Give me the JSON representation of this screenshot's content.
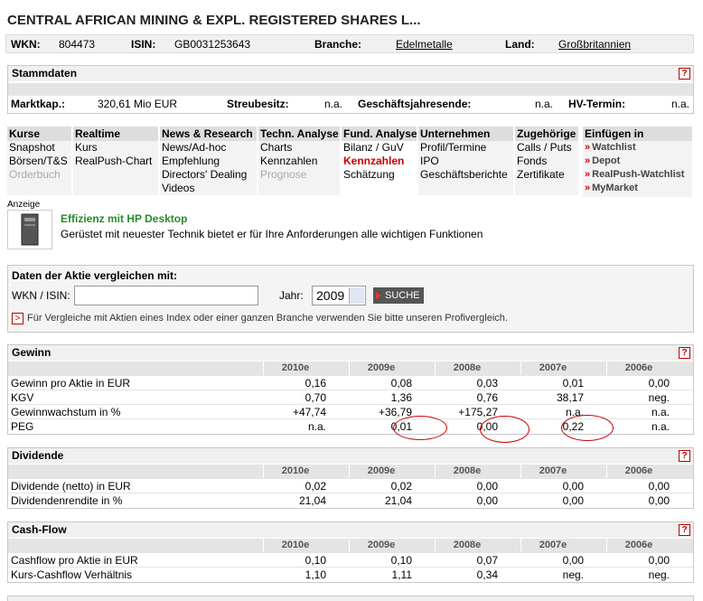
{
  "header": {
    "title": "CENTRAL AFRICAN MINING & EXPL. REGISTERED SHARES L..."
  },
  "info": [
    {
      "label": "WKN:",
      "value": "804473"
    },
    {
      "label": "ISIN:",
      "value": "GB0031253643"
    },
    {
      "label": "Branche:",
      "value": "Edelmetalle"
    },
    {
      "label": "Land:",
      "value": "Großbritannien"
    }
  ],
  "stammdaten": {
    "title": "Stammdaten",
    "help": "?",
    "items": [
      {
        "label": "Marktkap.:",
        "value": "320,61 Mio EUR"
      },
      {
        "label": "Streubesitz:",
        "value": "n.a."
      },
      {
        "label": "Geschäftsjahresende:",
        "value": "n.a."
      },
      {
        "label": "HV-Termin:",
        "value": "n.a."
      }
    ]
  },
  "nav": [
    {
      "title": "Kurse",
      "links": [
        "Snapshot",
        "Börsen/T&S",
        "Orderbuch"
      ]
    },
    {
      "title": "Realtime",
      "links": [
        "Kurs",
        "RealPush-Chart"
      ]
    },
    {
      "title": "News & Research",
      "links": [
        "News/Ad-hoc",
        "Empfehlung",
        "Directors' Dealing",
        "Videos"
      ]
    },
    {
      "title": "Techn. Analyse",
      "links": [
        "Charts",
        "Kennzahlen",
        "Prognose"
      ]
    },
    {
      "title": "Fund. Analyse",
      "links": [
        "Bilanz / GuV",
        "Kennzahlen",
        "Schätzung"
      ]
    },
    {
      "title": "Unternehmen",
      "links": [
        "Profil/Termine",
        "IPO",
        "Geschäftsberichte"
      ]
    },
    {
      "title": "Zugehörige",
      "links": [
        "Calls / Puts",
        "Fonds",
        "Zertifikate"
      ]
    }
  ],
  "einfuegen": {
    "title": "Einfügen in",
    "marker": "»",
    "links": [
      "Watchlist",
      "Depot",
      "RealPush-Watchlist",
      "MyMarket"
    ]
  },
  "ad": {
    "label": "Anzeige",
    "title": "Effizienz mit HP Desktop",
    "text": "Gerüstet mit neuester Technik bietet er für Ihre Anforderungen alle wichtigen Funktionen"
  },
  "compare": {
    "title": "Daten der Aktie vergleichen mit:",
    "wkn_label": "WKN / ISIN:",
    "year_label": "Jahr:",
    "year": "2009",
    "button": "SUCHE",
    "note_marker": ">",
    "note": "Für Vergleiche mit Aktien eines Index oder einer ganzen Branche verwenden Sie bitte unseren Profivergleich."
  },
  "tables": [
    {
      "title": "Gewinn",
      "help": "?",
      "columns": [
        "2010e",
        "2009e",
        "2008e",
        "2007e",
        "2006e"
      ],
      "rows": [
        {
          "label": "Gewinn pro Aktie in EUR",
          "values": [
            "0,16",
            "0,08",
            "0,03",
            "0,01",
            "0,00"
          ]
        },
        {
          "label": "KGV",
          "values": [
            "0,70",
            "1,36",
            "0,76",
            "38,17",
            "neg."
          ]
        },
        {
          "label": "Gewinnwachstum in %",
          "values": [
            "+47,74",
            "+36,79",
            "+175,27",
            "n.a.",
            "n.a."
          ]
        },
        {
          "label": "PEG",
          "values": [
            "n.a.",
            "0,01",
            "0,00",
            "0,22",
            "n.a."
          ]
        }
      ]
    },
    {
      "title": "Dividende",
      "help": "?",
      "columns": [
        "2010e",
        "2009e",
        "2008e",
        "2007e",
        "2006e"
      ],
      "rows": [
        {
          "label": "Dividende (netto) in EUR",
          "values": [
            "0,02",
            "0,02",
            "0,00",
            "0,00",
            "0,00"
          ]
        },
        {
          "label": "Dividendenrendite in %",
          "values": [
            "21,04",
            "21,04",
            "0,00",
            "0,00",
            "0,00"
          ]
        }
      ]
    },
    {
      "title": "Cash-Flow",
      "help": "?",
      "columns": [
        "2010e",
        "2009e",
        "2008e",
        "2007e",
        "2006e"
      ],
      "rows": [
        {
          "label": "Cashflow pro Aktie in EUR",
          "values": [
            "0,10",
            "0,10",
            "0,07",
            "0,00",
            "0,00"
          ]
        },
        {
          "label": "Kurs-Cashflow Verhältnis",
          "values": [
            "1,10",
            "1,11",
            "0,34",
            "neg.",
            "neg."
          ]
        }
      ]
    }
  ]
}
